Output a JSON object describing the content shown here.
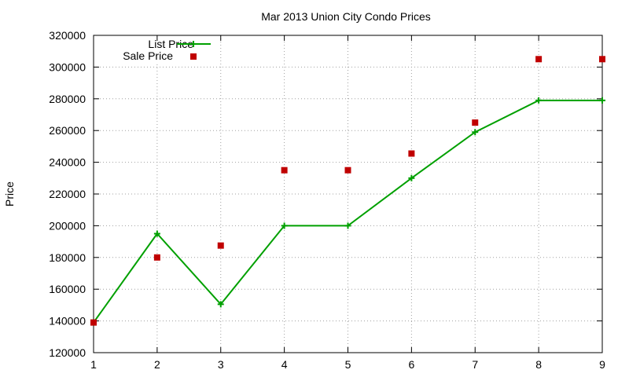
{
  "chart_data": {
    "type": "line",
    "title": "Mar 2013 Union City Condo Prices",
    "xlabel": "",
    "ylabel": "Price",
    "x": [
      1,
      2,
      3,
      4,
      5,
      6,
      7,
      8,
      9
    ],
    "xlim": [
      1,
      9
    ],
    "ylim": [
      120000,
      320000
    ],
    "xticks": [
      "1",
      "2",
      "3",
      "4",
      "5",
      "6",
      "7",
      "8",
      "9"
    ],
    "yticks": [
      "120000",
      "140000",
      "160000",
      "180000",
      "200000",
      "220000",
      "240000",
      "260000",
      "280000",
      "300000",
      "320000"
    ],
    "grid": true,
    "legend_position": "top-left",
    "series": [
      {
        "name": "List Price",
        "style": "line-with-plus-markers",
        "color": "#00a000",
        "values": [
          139000,
          195000,
          150500,
          200000,
          200000,
          230000,
          259000,
          279000,
          279000
        ]
      },
      {
        "name": "Sale Price",
        "style": "square-markers",
        "color": "#c00000",
        "values": [
          139000,
          180000,
          187500,
          235000,
          235000,
          245500,
          265000,
          305000,
          305000
        ]
      }
    ]
  }
}
